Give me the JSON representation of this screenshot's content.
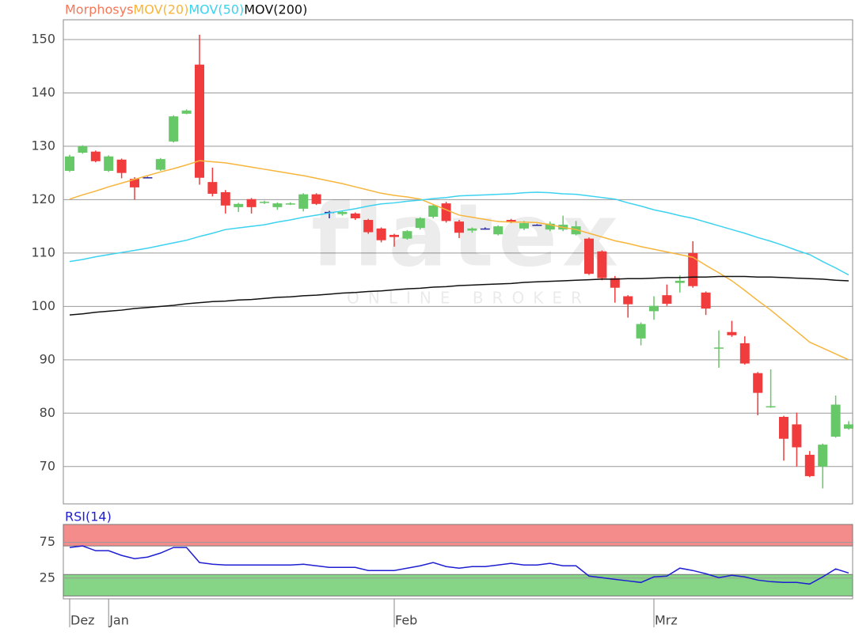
{
  "chart_data": [
    {
      "type": "candlestick",
      "watermark": "flatex",
      "watermark_subtitle": "ONLINE BROKER",
      "ylim": [
        63,
        153.7
      ],
      "yticks": [
        70,
        80,
        90,
        100,
        110,
        120,
        130,
        140,
        150
      ],
      "grid": true,
      "series": [
        {
          "name": "Morphosys",
          "color": "#f4785a",
          "up_color": "#66c866",
          "down_color": "#f03c3c",
          "flat_color": "#2a2aa0",
          "open": [
            125.4,
            128.8,
            129,
            125.4,
            127.5,
            123.9,
            124.2,
            125.6,
            130.9,
            136.1,
            145.3,
            123.3,
            121.4,
            118.6,
            120.1,
            119.5,
            118.6,
            119.2,
            118.3,
            121,
            117.7,
            117.3,
            117.4,
            116.2,
            114.6,
            113.4,
            112.7,
            114.7,
            116.8,
            119.3,
            115.9,
            114.2,
            114.6,
            113.5,
            116.2,
            114.6,
            115.3,
            114.4,
            114.4,
            113.5,
            112.7,
            110.3,
            105.3,
            101.9,
            94,
            99.1,
            102.1,
            104.4,
            110,
            102.6,
            92.1,
            95.2,
            93.1,
            87.5,
            81.1,
            79.3,
            77.9,
            72.2,
            70,
            75.6,
            77.1
          ],
          "high": [
            128.4,
            130.2,
            129.2,
            128.3,
            127.7,
            124.2,
            124.3,
            127.8,
            135.8,
            136.9,
            150.9,
            126,
            121.8,
            119.4,
            120.3,
            119.8,
            119.5,
            119.5,
            121.2,
            121.2,
            117.9,
            117.9,
            117.6,
            116.4,
            114.8,
            113.6,
            114.3,
            116.7,
            119.1,
            119.6,
            116.2,
            114.8,
            114.8,
            115.2,
            116.4,
            116,
            115.4,
            115.9,
            117,
            116,
            112.9,
            110.5,
            105.7,
            102.1,
            97,
            101.9,
            104.1,
            105.8,
            112.2,
            102.8,
            95.5,
            97.3,
            94.4,
            87.7,
            88.2,
            79.5,
            80.1,
            72.9,
            74.3,
            83.3,
            78.5
          ],
          "low": [
            125.2,
            128.6,
            127,
            125.2,
            124,
            120,
            124.1,
            125.4,
            130.7,
            136,
            122.8,
            120.6,
            117.4,
            117.7,
            117.4,
            119.2,
            118.1,
            119,
            117.8,
            119,
            116.5,
            117,
            116.2,
            113.6,
            112,
            111.2,
            112.5,
            114.4,
            116.5,
            115.7,
            112.8,
            113.8,
            114.4,
            113.3,
            115.6,
            114.3,
            115.2,
            114.1,
            114.1,
            113.3,
            105.9,
            104.9,
            100.7,
            97.9,
            92.7,
            97.5,
            100.1,
            102.6,
            103.5,
            98.4,
            88.5,
            94.3,
            89.1,
            79.6,
            81,
            71.1,
            70,
            68,
            65.9,
            75.4,
            76.9
          ],
          "close": [
            128.1,
            130,
            127.2,
            128.1,
            125,
            122.3,
            124.2,
            127.6,
            135.6,
            136.7,
            124.1,
            121.1,
            118.9,
            119.2,
            118.6,
            119.6,
            119.3,
            119.3,
            121,
            119.2,
            117.7,
            117.7,
            116.5,
            113.9,
            112.4,
            113,
            114.1,
            116.5,
            118.9,
            116,
            113.8,
            114.6,
            114.6,
            115,
            115.8,
            115.6,
            115.3,
            115.5,
            115.3,
            115,
            106.1,
            105.3,
            103.5,
            100.4,
            96.7,
            100.1,
            100.5,
            104.8,
            103.8,
            99.6,
            92.3,
            94.6,
            89.3,
            83.8,
            81.3,
            75.2,
            73.6,
            68.2,
            74.1,
            81.6,
            77.9
          ]
        },
        {
          "name": "MOV(20)",
          "color": "#f7b53c",
          "values": [
            120.1,
            120.9,
            121.6,
            122.4,
            123.1,
            123.8,
            124.5,
            125.2,
            125.8,
            126.5,
            127.3,
            127.1,
            126.9,
            126.5,
            126.1,
            125.7,
            125.3,
            124.9,
            124.5,
            124,
            123.5,
            123,
            122.4,
            121.8,
            121.2,
            120.8,
            120.5,
            120.1,
            119.1,
            118.1,
            117.1,
            116.7,
            116.3,
            115.9,
            115.8,
            115.8,
            115.7,
            115.3,
            114.8,
            114.4,
            113.7,
            113,
            112.3,
            111.8,
            111.2,
            110.7,
            110.2,
            109.7,
            109.2,
            107.7,
            106.3,
            104.8,
            103,
            101.1,
            99.3,
            97.3,
            95.3,
            93.3,
            92.2,
            91.1,
            90
          ]
        },
        {
          "name": "MOV(50)",
          "color": "#3cd2f0",
          "values": [
            108.4,
            108.8,
            109.3,
            109.7,
            110.1,
            110.5,
            110.9,
            111.4,
            111.9,
            112.4,
            113.1,
            113.7,
            114.4,
            114.7,
            115,
            115.3,
            115.8,
            116.2,
            116.7,
            117.1,
            117.5,
            117.9,
            118.3,
            118.8,
            119.2,
            119.4,
            119.7,
            119.9,
            120.2,
            120.4,
            120.7,
            120.8,
            120.9,
            121,
            121.1,
            121.3,
            121.4,
            121.3,
            121.1,
            121,
            120.7,
            120.4,
            120.1,
            119.4,
            118.8,
            118.1,
            117.6,
            117,
            116.5,
            115.8,
            115.1,
            114.4,
            113.7,
            112.9,
            112.2,
            111.4,
            110.5,
            109.7,
            108.4,
            107.2,
            105.9
          ]
        },
        {
          "name": "MOV(200)",
          "color": "#111111",
          "values": [
            98.4,
            98.6,
            98.9,
            99.1,
            99.3,
            99.6,
            99.8,
            100,
            100.2,
            100.5,
            100.7,
            100.9,
            101,
            101.2,
            101.3,
            101.5,
            101.7,
            101.8,
            102,
            102.1,
            102.3,
            102.5,
            102.6,
            102.8,
            102.9,
            103.1,
            103.3,
            103.4,
            103.6,
            103.7,
            103.9,
            104,
            104.1,
            104.2,
            104.3,
            104.5,
            104.6,
            104.7,
            104.8,
            104.9,
            105,
            105.1,
            105.1,
            105.2,
            105.2,
            105.3,
            105.4,
            105.4,
            105.5,
            105.5,
            105.6,
            105.6,
            105.6,
            105.5,
            105.5,
            105.4,
            105.3,
            105.2,
            105.1,
            104.9,
            104.8
          ]
        }
      ]
    },
    {
      "type": "line",
      "categories": [
        "Dez",
        null,
        null,
        "Jan",
        null,
        null,
        null,
        null,
        null,
        null,
        null,
        null,
        null,
        null,
        null,
        null,
        null,
        null,
        null,
        null,
        null,
        null,
        null,
        null,
        null,
        "Feb",
        null,
        null,
        null,
        null,
        null,
        null,
        null,
        null,
        null,
        null,
        null,
        null,
        null,
        null,
        null,
        null,
        null,
        null,
        null,
        "Mrz",
        null,
        null,
        null,
        null,
        null,
        null,
        null,
        null,
        null,
        null,
        null,
        null,
        null,
        null,
        null
      ],
      "ylim": [
        -4,
        100
      ],
      "yticks": [
        25,
        75
      ],
      "bands": [
        {
          "from": 70,
          "to": 100,
          "color": "#f58c8c"
        },
        {
          "from": 0,
          "to": 30,
          "color": "#86d486"
        }
      ],
      "series": [
        {
          "name": "RSI(14)",
          "color": "#1e1ed2",
          "values": [
            67.8,
            70,
            63.3,
            63.3,
            56.7,
            52.2,
            54.4,
            60,
            67.8,
            67.8,
            46.7,
            44.4,
            43.3,
            43.3,
            43.3,
            43.3,
            43.3,
            43.3,
            44.4,
            42.2,
            40,
            40,
            40,
            35.6,
            35.6,
            35.6,
            38.9,
            42.2,
            46.7,
            41.1,
            38.9,
            41.1,
            41.1,
            43.3,
            45.6,
            43.3,
            43.3,
            45.6,
            42.2,
            42.2,
            27.8,
            25.6,
            23.3,
            21.1,
            18.9,
            26.7,
            27.8,
            38.9,
            35.6,
            31.1,
            25.6,
            28.9,
            26.7,
            22.2,
            20,
            18.9,
            18.9,
            16.7,
            26.7,
            37.8,
            32.2
          ]
        }
      ]
    }
  ]
}
